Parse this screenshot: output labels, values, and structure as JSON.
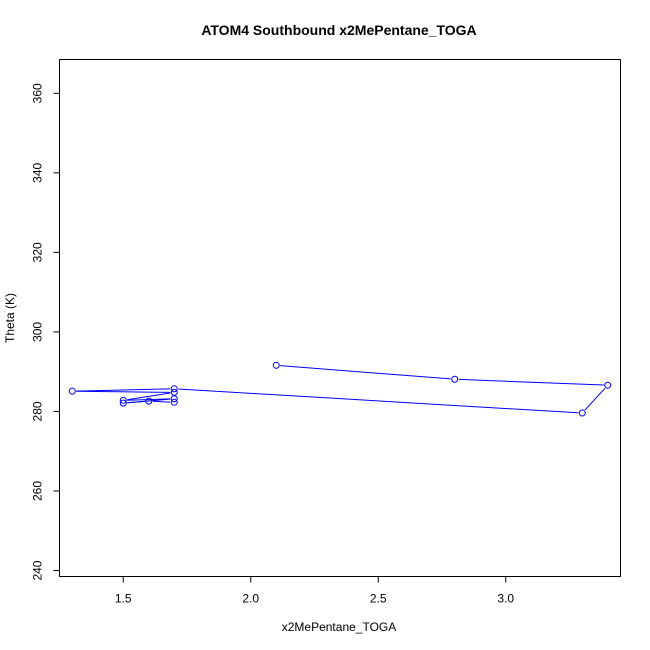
{
  "chart_data": {
    "type": "line",
    "title": "ATOM4 Southbound x2MePentane_TOGA",
    "xlabel": "x2MePentane_TOGA",
    "ylabel": "Theta (K)",
    "xlim": [
      1.25,
      3.45
    ],
    "ylim": [
      238.5,
      368.5
    ],
    "x_ticks": [
      1.5,
      2.0,
      2.5,
      3.0
    ],
    "x_tick_labels": [
      "1.5",
      "2.0",
      "2.5",
      "3.0"
    ],
    "y_ticks": [
      240,
      260,
      280,
      300,
      320,
      340,
      360
    ],
    "y_tick_labels": [
      "240",
      "260",
      "280",
      "300",
      "320",
      "340",
      "360"
    ],
    "grid": false,
    "legend": "none",
    "series": [
      {
        "color": "#0000ff",
        "marker": "open-circle",
        "points": [
          {
            "x": 2.1,
            "y": 291.6
          },
          {
            "x": 2.8,
            "y": 288.1
          },
          {
            "x": 3.4,
            "y": 286.6
          },
          {
            "x": 3.3,
            "y": 279.6
          },
          {
            "x": 1.7,
            "y": 285.7
          },
          {
            "x": 1.3,
            "y": 285.1
          },
          {
            "x": 1.7,
            "y": 284.8
          },
          {
            "x": 1.5,
            "y": 282.8
          },
          {
            "x": 1.7,
            "y": 283.2
          },
          {
            "x": 1.5,
            "y": 282.1
          },
          {
            "x": 1.6,
            "y": 282.6
          },
          {
            "x": 1.7,
            "y": 282.3
          }
        ]
      }
    ]
  }
}
